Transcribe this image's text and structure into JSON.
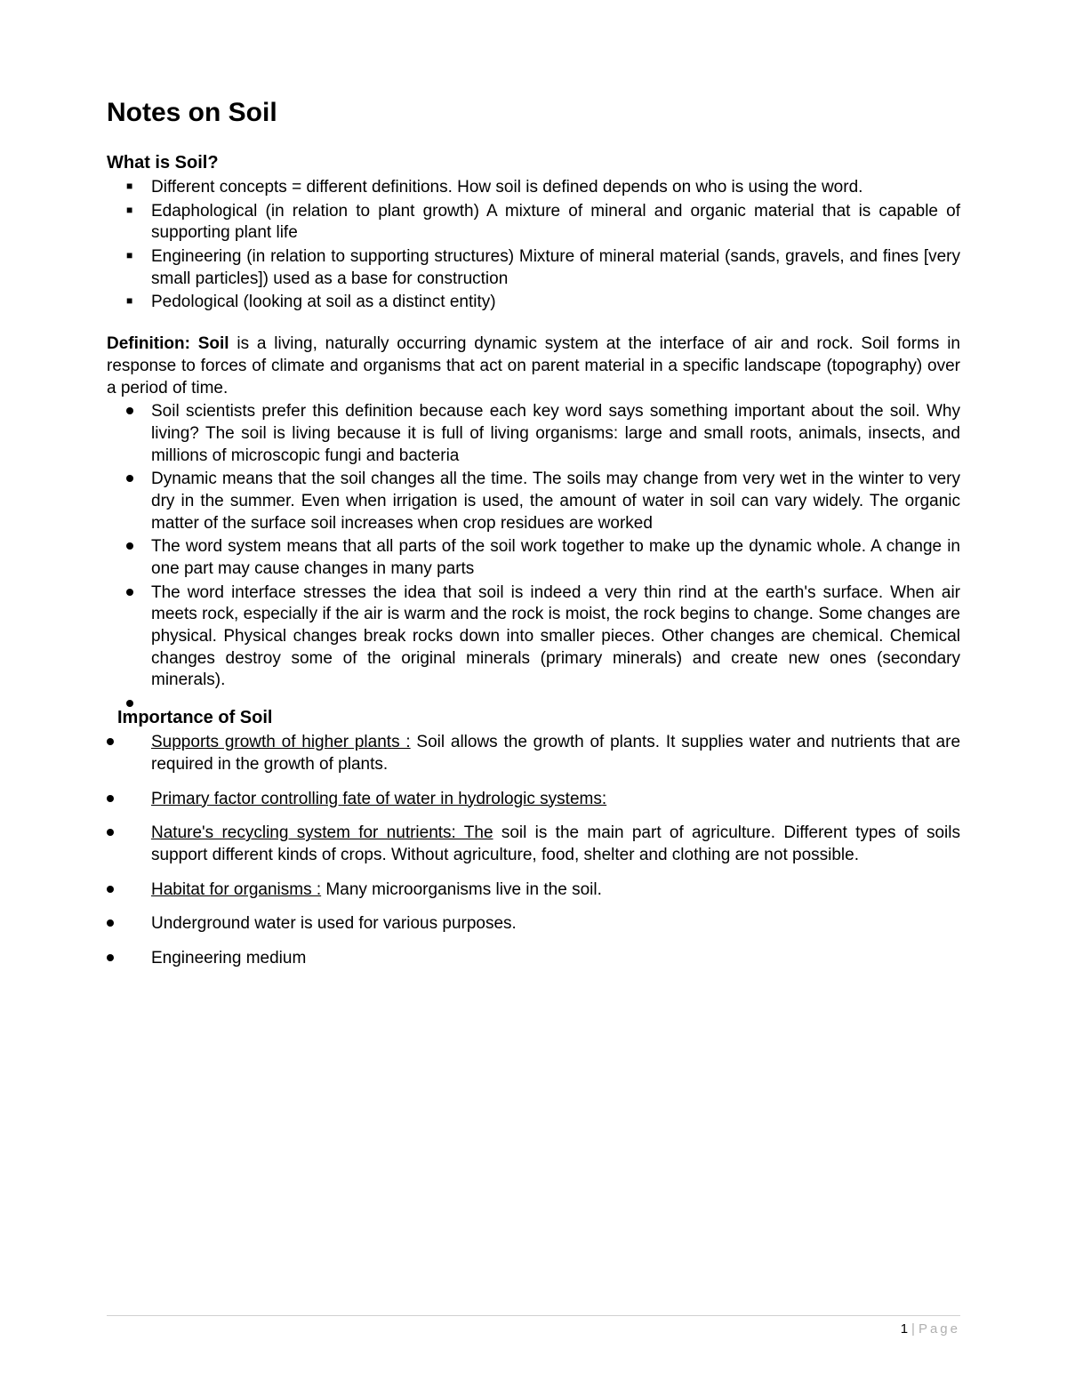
{
  "title": "Notes on Soil",
  "sections": {
    "whatIsSoil": {
      "heading": "What is Soil?",
      "bullets": [
        "Different concepts = different definitions. How soil is defined depends on who is using the word.",
        "Edaphological (in relation to plant growth) A mixture of mineral and organic material that is capable of supporting plant life",
        "Engineering (in relation to supporting structures) Mixture of mineral material (sands, gravels, and fines [very small particles]) used as a base for construction",
        " Pedological (looking at soil as a distinct entity)"
      ]
    },
    "definition": {
      "lead": "Definition: Soil",
      "rest": " is a living, naturally occurring dynamic system at the interface of air and rock. Soil forms in response to forces of climate and organisms that act on parent material in a specific landscape (topography) over a period of time.",
      "bullets": [
        "Soil scientists prefer this definition because each key word says something important about the soil. Why living? The soil is living because it is full of living organisms: large and small roots, animals, insects, and millions of microscopic fungi and bacteria",
        "Dynamic means that the soil changes all the time. The soils may change from very wet in the winter to very dry in the summer. Even when irrigation is used, the amount of water in soil can vary widely. The organic matter of the surface soil increases when crop residues are worked",
        "The word system means that all parts of the soil work together to make up the dynamic whole. A change in one part may cause changes in many parts",
        "The word interface stresses the idea that soil is indeed a very thin rind at the earth's surface. When air meets rock, especially if the air is warm and the rock is moist, the rock begins to change. Some changes are physical. Physical changes break rocks down into smaller pieces. Other changes are chemical. Chemical changes destroy some of the original minerals (primary minerals) and create new ones (secondary minerals).",
        ""
      ]
    },
    "importance": {
      "heading": "Importance of Soil",
      "items": [
        {
          "lead": "Supports growth of higher plants :",
          "rest": " Soil allows the growth of plants. It supplies water and nutrients that are required in the growth of plants."
        },
        {
          "lead": "Primary factor controlling fate of water in hydrologic systems:",
          "rest": ""
        },
        {
          "lead": "Nature's recycling system for nutrients: The",
          "rest": " soil is the main part of agriculture. Different types of soils support different kinds of crops. Without agriculture, food, shelter and clothing are not possible."
        },
        {
          "lead": "Habitat for organisms :",
          "rest": " Many microorganisms live in the soil."
        },
        {
          "lead": "",
          "rest": "Underground water is used for various purposes."
        },
        {
          "lead": "",
          "rest": "Engineering medium"
        }
      ]
    }
  },
  "footer": {
    "pageNumber": "1",
    "pageLabel": "Page"
  }
}
